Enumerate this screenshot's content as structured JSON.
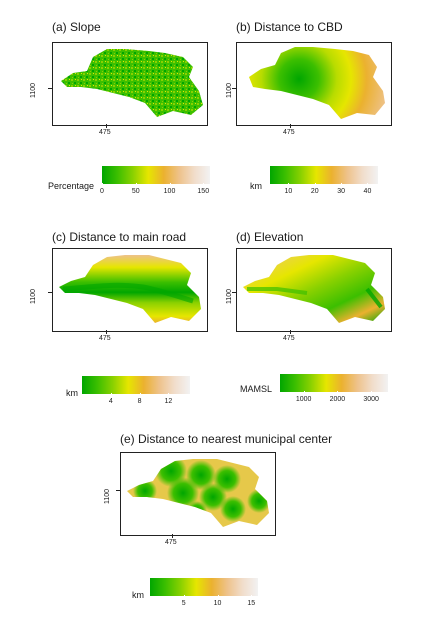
{
  "panels": [
    {
      "title": "(a) Slope",
      "ytick": "1100",
      "xtick": "475",
      "legend_title": "Percentage",
      "legend_ticks": [
        "0",
        "50",
        "100",
        "150"
      ],
      "legend_values": [
        0,
        50,
        100,
        150
      ],
      "legend_range": [
        0,
        160
      ]
    },
    {
      "title": "(b) Distance to CBD",
      "ytick": "1100",
      "xtick": "475",
      "legend_title": "km",
      "legend_ticks": [
        "10",
        "20",
        "30",
        "40"
      ],
      "legend_values": [
        10,
        20,
        30,
        40
      ],
      "legend_range": [
        3,
        44
      ]
    },
    {
      "title": "(c) Distance to main road",
      "ytick": "1100",
      "xtick": "475",
      "legend_title": "km",
      "legend_ticks": [
        "4",
        "8",
        "12"
      ],
      "legend_values": [
        4,
        8,
        12
      ],
      "legend_range": [
        0,
        15
      ]
    },
    {
      "title": "(d) Elevation",
      "ytick": "1100",
      "xtick": "475",
      "legend_title": "MAMSL",
      "legend_ticks": [
        "1000",
        "2000",
        "3000"
      ],
      "legend_values": [
        1000,
        2000,
        3000
      ],
      "legend_range": [
        300,
        3500
      ]
    },
    {
      "title": "(e) Distance to nearest municipal center",
      "ytick": "1100",
      "xtick": "475",
      "legend_title": "km",
      "legend_ticks": [
        "5",
        "10",
        "15"
      ],
      "legend_values": [
        5,
        10,
        15
      ],
      "legend_range": [
        0,
        16
      ]
    }
  ],
  "colors": {
    "ramp": [
      "#00a600",
      "#3cbf00",
      "#8ad100",
      "#e6e600",
      "#ebb12f",
      "#eec28a",
      "#f1ddcb",
      "#f2f2f2"
    ]
  }
}
